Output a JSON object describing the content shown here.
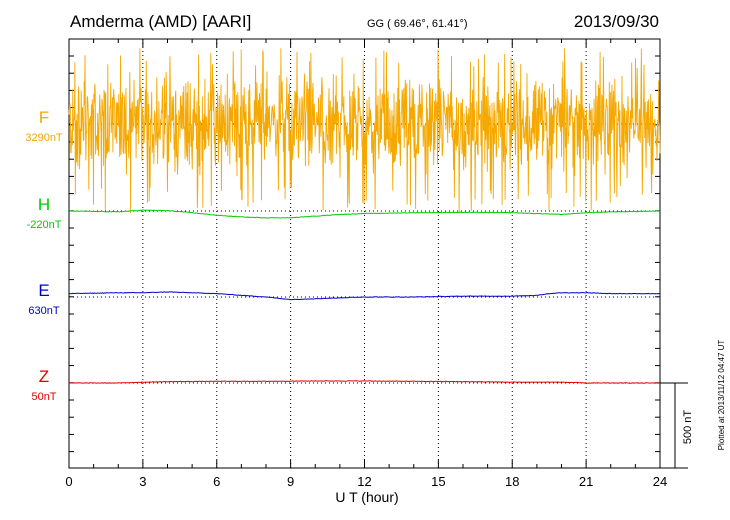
{
  "header": {
    "station": "Amderma (AMD)  [AARI]",
    "coords": "GG ( 69.46°,  61.41°)",
    "date": "2013/09/30"
  },
  "footer": {
    "xlabel": "U T (hour)",
    "plotted": "Plotted at 2013/11/12 04:47 UT",
    "scale_label": "500 nT"
  },
  "chart_data": {
    "type": "line",
    "title": "Amderma (AMD)  [AARI]",
    "xlabel": "U T (hour)",
    "ylabel": "",
    "xlim": [
      0,
      24
    ],
    "x_ticks": [
      0,
      3,
      6,
      9,
      12,
      15,
      18,
      21,
      24
    ],
    "grid": true,
    "scale_bar_nT": 500,
    "series": [
      {
        "name": "F",
        "baseline_label": "3290nT",
        "color": "#f5a800",
        "noise_amplitude_nT": 280,
        "x": [
          0,
          3,
          6,
          9,
          12,
          15,
          18,
          21,
          24
        ],
        "values": [
          0,
          0,
          0,
          0,
          0,
          0,
          0,
          0,
          0
        ]
      },
      {
        "name": "H",
        "baseline_label": "-220nT",
        "color": "#00cc00",
        "x": [
          0,
          2,
          3,
          4,
          5,
          6,
          7,
          8,
          9,
          10,
          11,
          12,
          14,
          16,
          18,
          19,
          20,
          20.5,
          21,
          22,
          24
        ],
        "values": [
          0,
          -5,
          5,
          2,
          -10,
          -25,
          -35,
          -40,
          -40,
          -30,
          -20,
          -15,
          -10,
          -8,
          -10,
          -15,
          -20,
          -15,
          -10,
          -5,
          0
        ]
      },
      {
        "name": "E",
        "baseline_label": "630nT",
        "color": "#0000cc",
        "x": [
          0,
          2,
          3,
          4,
          5,
          6,
          7,
          8,
          9,
          10,
          12,
          14,
          16,
          18,
          19,
          19.5,
          20,
          21,
          22,
          24
        ],
        "values": [
          20,
          25,
          25,
          30,
          25,
          20,
          10,
          0,
          -15,
          -10,
          0,
          0,
          5,
          5,
          10,
          20,
          25,
          25,
          20,
          20
        ]
      },
      {
        "name": "Z",
        "baseline_label": "50nT",
        "color": "#e00000",
        "x": [
          0,
          2,
          3,
          4,
          6,
          8,
          10,
          12,
          14,
          16,
          18,
          20,
          21,
          22,
          24
        ],
        "values": [
          0,
          0,
          5,
          8,
          10,
          10,
          12,
          12,
          10,
          8,
          5,
          5,
          0,
          0,
          0
        ]
      }
    ]
  }
}
